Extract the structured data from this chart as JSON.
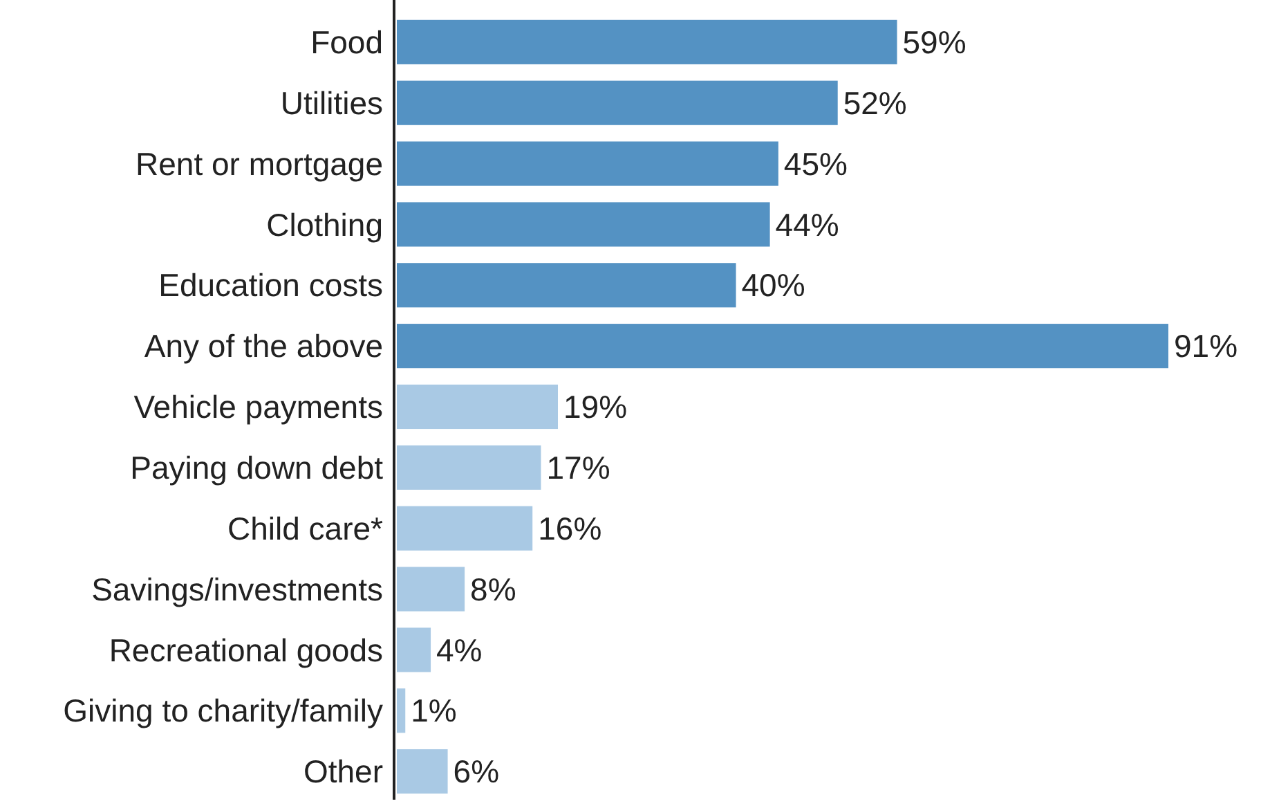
{
  "chart_data": {
    "type": "bar",
    "orientation": "horizontal",
    "tick_labels": "y",
    "categories": [
      "Food",
      "Utilities",
      "Rent or mortgage",
      "Clothing",
      "Education costs",
      "Any of the above",
      "Vehicle payments",
      "Paying down debt",
      "Child care*",
      "Savings/investments",
      "Recreational goods",
      "Giving to charity/family",
      "Other"
    ],
    "values": [
      59,
      52,
      45,
      44,
      40,
      91,
      19,
      17,
      16,
      8,
      4,
      1,
      6
    ],
    "colors": [
      "#5492c3",
      "#5492c3",
      "#5492c3",
      "#5492c3",
      "#5492c3",
      "#5492c3",
      "#a9c9e4",
      "#a9c9e4",
      "#a9c9e4",
      "#a9c9e4",
      "#a9c9e4",
      "#a9c9e4",
      "#a9c9e4"
    ],
    "value_labels": [
      "59%",
      "52%",
      "45%",
      "44%",
      "40%",
      "91%",
      "19%",
      "17%",
      "16%",
      "8%",
      "4%",
      "1%",
      "6%"
    ]
  }
}
